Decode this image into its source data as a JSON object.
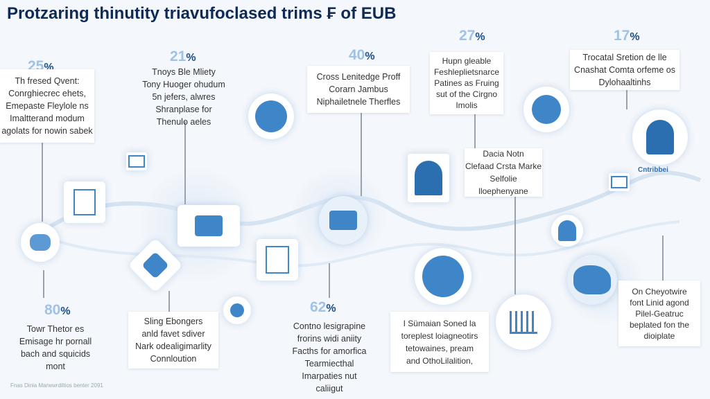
{
  "title": "Protzaring thinutity triavufoclased trims ₣ of EUB",
  "items": [
    {
      "pct": "25",
      "lines": [
        "Th fresed Qvent:",
        "Conrghiecrec ehets,",
        "Emepaste Fleylole ns",
        "Imaltterand modum",
        "agolats for nowin sabek"
      ]
    },
    {
      "pct": "21",
      "lines": [
        "Tnoys Ble Mliety",
        "Tony Huoger ohudum",
        "5n jefers, alwres",
        "Shranplase for",
        "Thenulo aeles"
      ]
    },
    {
      "pct": "40",
      "lines": [
        "Cross Lenitedge Proff",
        "Corarn Jambus",
        "Niphailetnele Therfles"
      ]
    },
    {
      "pct": "27",
      "lines": [
        "Hupn gleable",
        "Feshleplietsnarce",
        "Patines as Fruing",
        "sut of the Cirgno",
        "Imolis"
      ]
    },
    {
      "pct": "17",
      "lines": [
        "Trocatal Sretion de lle",
        "Cnashat Comta orfeme os",
        "Dylohaaltinhs"
      ]
    },
    {
      "pct": "",
      "lines": [
        "Dacia Notn",
        "Clefaad Crsta Marke",
        "Selfolie lloephenyane"
      ]
    },
    {
      "pct": "80",
      "lines": [
        "Towr Thetor es",
        "Emisage hr pornall",
        "bach and squicids",
        "mont"
      ]
    },
    {
      "pct": "",
      "lines": [
        "Sling Ebongers",
        "anld favet sdiver",
        "Nark odealigimarlity",
        "Connloution"
      ]
    },
    {
      "pct": "62",
      "lines": [
        "Contno lesigrapine",
        "frorins widi aniity",
        "Facths for amorfica",
        "Tearmiecthal",
        "Imarpaties nut",
        "caliigut"
      ]
    },
    {
      "pct": "",
      "lines": [
        "I Sümaian Soned la",
        "toreplest loiagneotirs",
        "tetowaines, pream",
        "and OthoLilalition,"
      ]
    },
    {
      "pct": "",
      "lines": [
        "On Cheyotwire",
        "font Linid agond",
        "Pilel-Geatruc",
        "beplated fon the",
        "dioiplate"
      ]
    }
  ],
  "badge_label": "Cntribbei",
  "footer": "Fnas Dinia Marwwrdiltios benter 2091",
  "colors": {
    "title": "#0f2a55",
    "accent": "#3f86c8",
    "pct_light": "#9ec3e6",
    "pct_dark": "#1d4f86"
  }
}
